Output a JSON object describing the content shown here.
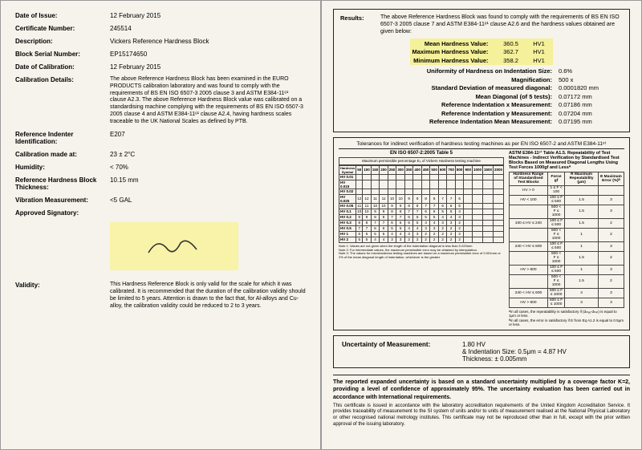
{
  "left": {
    "dateOfIssue": {
      "label": "Date of Issue:",
      "value": "12 February 2015"
    },
    "certNumber": {
      "label": "Certificate Number:",
      "value": "245514"
    },
    "description": {
      "label": "Description:",
      "value": "Vickers Reference Hardness Block"
    },
    "serial": {
      "label": "Block Serial Number:",
      "value": "EP15174650"
    },
    "dateCal": {
      "label": "Date of Calibration:",
      "value": "12 February 2015"
    },
    "calDetails": {
      "label": "Calibration Details:",
      "value": "The above Reference Hardness Block has been examined in the EURO PRODUCTS calibration laboratory and was found to comply with the requirements of BS EN ISO 6507-3 2005 clause 3 and ASTM E384-11ᵉ¹ clause A2.3. The above Reference Hardness Block value was calibrated on a standardising machine complying with the requirements of BS EN ISO 6507-3 2005 clause 4 and ASTM E384-11ᵉ¹ clause A2.4, having hardness scales traceable to the UK National Scales as defined by PTB."
    },
    "indenter": {
      "label": "Reference Indenter Identification:",
      "value": "E207"
    },
    "calAt": {
      "label": "Calibration made at:",
      "value": "23 ± 2°C"
    },
    "humidity": {
      "label": "Humidity:",
      "value": "< 70%"
    },
    "thickness": {
      "label": "Reference Hardness Block Thickness:",
      "value": "10.15 mm"
    },
    "vibration": {
      "label": "Vibration Measurement:",
      "value": "<5 GAL"
    },
    "signatory": {
      "label": "Approved Signatory:"
    },
    "validity": {
      "label": "Validity:",
      "value": "This Hardness Reference Block is only valid for the scale for which it was calibrated. It is recommended that the duration of the calibration validity should be limited to 5 years. Attention is drawn to the fact that, for Al-alloys and Cu-alloy, the calibration validity could be reduced to 2 to 3 years."
    }
  },
  "right": {
    "resultsLabel": "Results:",
    "resultsText": "The above Reference Hardness Block was found to comply with the requirements of BS EN ISO 6507-3 2005 clause 7 and ASTM E384-11ᵉ¹ clause A2.6 and the hardness values obtained are given below:",
    "mean": {
      "label": "Mean Hardness Value:",
      "value": "360.5",
      "unit": "HV1"
    },
    "max": {
      "label": "Maximum Hardness Value:",
      "value": "362.7",
      "unit": "HV1"
    },
    "min": {
      "label": "Minimum Hardness Value:",
      "value": "358.2",
      "unit": "HV1"
    },
    "uniformity": {
      "label": "Uniformity of Hardness on Indentation Size:",
      "value": "0.6%"
    },
    "magnification": {
      "label": "Magnification:",
      "value": "500 x"
    },
    "stddev": {
      "label": "Standard Deviation of measured diagonal:",
      "value": "0.0001820 mm"
    },
    "meanDiag": {
      "label": "Mean Diagonal (of 5 tests):",
      "value": "0.07172 mm"
    },
    "refX": {
      "label": "Reference Indentation x Measurement:",
      "value": "0.07186 mm"
    },
    "refY": {
      "label": "Reference Indentation y Measurement:",
      "value": "0.07204 mm"
    },
    "refMean": {
      "label": "Reference Indentation Mean Measurement:",
      "value": "0.07195 mm"
    },
    "tolTitle": "Tolerances for indirect verification of hardness testing machines as per EN ISO 6507-2 and ASTM E384-11ᵉ¹",
    "isoTitle": "EN ISO 6507-2:2005 Table 5",
    "astmTitle": "ASTM E384-11ᵉ¹ Table A1.5. Repeatability of Test Machines - Indirect Verification by Standardised Test Blocks Based on Measured Diagonal Lengths Using Test Forces 1000gf and Lessᴬ",
    "isoSubtitle": "Maximum permissible percentage Eₚ of Vickers Hardness testing machine",
    "isoRows": [
      "HV 0.01",
      "HV 0.015",
      "HV 0.02",
      "HV 0.025",
      "HV 0.05",
      "HV 0.1",
      "HV 0.2",
      "HV 0.3",
      "HV 0.5",
      "HV 1",
      "HV 2"
    ],
    "isoCols": [
      "50",
      "100",
      "150",
      "200",
      "250",
      "300",
      "350",
      "400",
      "450",
      "500",
      "600",
      "700",
      "800",
      "900",
      "1000",
      "1500",
      "2000"
    ],
    "isoNote1": "Note 1: Values are not given when the length of the indentation diagonal is less than 0.020mm",
    "isoNote2": "Note 2: For intermediate values, the maximum permissible error may be obtained by interpolation.",
    "isoNote3": "Note 3: The values for microhardness testing machines are based on a maximum permissible error of 0.001mm or 2% of the mean diagonal length of indentation, whichever is the greater.",
    "astmTable": {
      "header1": "Hardness Range of Standardised Test Blocks",
      "header2": "Force gf",
      "header3": "R Maximum Repeatability (μm)",
      "header4": "E Maximum Error (%)ᴮ",
      "rows": [
        {
          "r": "HV > 0",
          "f": "1 ≤ F < 100",
          "rep": "",
          "err": ""
        },
        {
          "r": "HV < 100",
          "f": "100 ≤ F ≤ 500",
          "rep": "1.5",
          "err": "3"
        },
        {
          "r": "",
          "f": "500 < F ≤ 1000",
          "rep": "1.5",
          "err": "3"
        },
        {
          "r": "100 ≤ HV ≤ 240",
          "f": "100 ≤ F ≤ 500",
          "rep": "1.5",
          "err": "2"
        },
        {
          "r": "",
          "f": "500 < F ≤ 1000",
          "rep": "1",
          "err": "2"
        },
        {
          "r": "240 < HV ≤ 600",
          "f": "100 ≤ F ≤ 500",
          "rep": "1",
          "err": "3"
        },
        {
          "r": "",
          "f": "500 < F ≤ 1000",
          "rep": "1.5",
          "err": "2"
        },
        {
          "r": "HV > 600",
          "f": "100 ≤ F ≤ 500",
          "rep": "1",
          "err": "3"
        },
        {
          "r": "",
          "f": "500 < F ≤ 1000",
          "rep": "1.5",
          "err": "2"
        },
        {
          "r": "240 < HV ≤ 600",
          "f": "500 ≤ F ≤ 1000",
          "rep": "4",
          "err": "3"
        },
        {
          "r": "HV > 600",
          "f": "500 ≤ F ≤ 1000",
          "rep": "3",
          "err": "3"
        }
      ],
      "footA": "ᴬIn all cases, the repeatability is satisfactory if (dₘₐₓ-dₘᵢₙ) is equal to 1μm or less.",
      "footB": "ᴮIn all cases, the error is satisfactory if E from Eq A1.2 is equal to 0.5μm or less."
    },
    "uncertLabel": "Uncertainty of Measurement:",
    "uncertV1": "1.80 HV",
    "uncertV2": "& Indentation Size: 0.5μm = 4.87 HV",
    "uncertV3": "Thickness: ± 0.005mm",
    "footerBold": "The reported expanded uncertainty is based on a standard uncertainty multiplied by a coverage factor K=2, providing a level of confidence of approximately 95%. The uncertainty evaluation has been carried out in accordance with International requirements.",
    "footerText": "This certificate is issued in accordance with the laboratory accreditation requirements of the United Kingdom Accreditation Service. It provides traceability of measurement to the SI system of units and/or to units of measurement realised at the National Physical Laboratory or other recognised national metrology institutes. This certificate may not be reproduced other than in full, except with the prior written approval of the issuing laboratory."
  }
}
